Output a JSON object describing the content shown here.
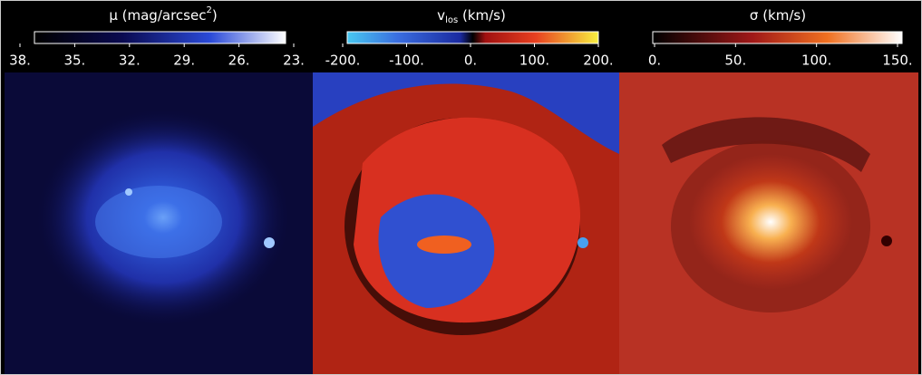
{
  "panels": [
    {
      "title": {
        "main": "μ (mag/arcsec",
        "sup": "2",
        "end": ")"
      },
      "lim": [
        38,
        23
      ],
      "ticks": [
        {
          "value": 38,
          "label": "38."
        },
        {
          "value": 35,
          "label": "35."
        },
        {
          "value": 32,
          "label": "32."
        },
        {
          "value": 29,
          "label": "29."
        },
        {
          "value": 26,
          "label": "26."
        },
        {
          "value": 23,
          "label": "23."
        }
      ]
    },
    {
      "title": {
        "main": "v",
        "sub": "los",
        "end": " (km/s)"
      },
      "lim": [
        -200,
        200
      ],
      "ticks": [
        {
          "value": -200,
          "label": "-200."
        },
        {
          "value": -100,
          "label": "-100."
        },
        {
          "value": 0,
          "label": "0."
        },
        {
          "value": 100,
          "label": "100."
        },
        {
          "value": 200,
          "label": "200."
        }
      ]
    },
    {
      "title": {
        "main": "σ (km/s)"
      },
      "lim": [
        0,
        150
      ],
      "ticks": [
        {
          "value": 0,
          "label": "0."
        },
        {
          "value": 50,
          "label": "50."
        },
        {
          "value": 100,
          "label": "100."
        },
        {
          "value": 150,
          "label": "150."
        }
      ]
    }
  ]
}
